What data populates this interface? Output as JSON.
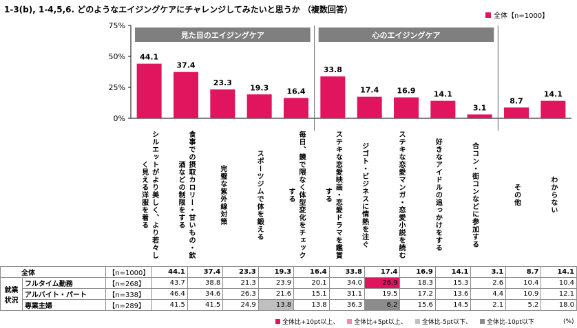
{
  "title": "1-3(b), 1-4,5,6. どのようなエイジングケアにチャレンジしてみたいと思うか （複数回答）",
  "legend_label": "全体【n=1000】",
  "unit": "(%)",
  "colors": {
    "bar": "#e1145e",
    "header": "#7f7f7f",
    "hi10": "#e1145e",
    "hi5": "#f08cb3",
    "lo5": "#bfbfbf",
    "lo10": "#8c8c8c"
  },
  "footnote": [
    {
      "label": "全体比+10pt以上、",
      "color": "#e1145e"
    },
    {
      "label": "全体比+5pt以上、",
      "color": "#f08cb3"
    },
    {
      "label": "全体比-5pt以下、",
      "color": "#bfbfbf"
    },
    {
      "label": "全体比-10pt以下",
      "color": "#8c8c8c"
    }
  ],
  "chart_data": {
    "type": "bar",
    "ylim": [
      0,
      75
    ],
    "yticks": [
      "0%",
      "25%",
      "50%",
      "75%"
    ],
    "groups": [
      {
        "label": "見た目のエイジングケア",
        "from": 0,
        "to": 4
      },
      {
        "label": "心のエイジングケア",
        "from": 5,
        "to": 9
      }
    ],
    "categories": [
      "シルエットがより美しく、より若々しく見える洋服を着る",
      "食事での摂取カロリー・甘いもの・飲酒などの制限をする",
      "完璧な紫外線対策",
      "スポーツジムで体を鍛える",
      "毎日、鏡で隈なく体型変化をチェックする",
      "ステキな恋愛映画・恋愛ドラマを鑑賞する",
      "ジゴト・ビジネスに情熱を注ぐ",
      "ステキな恋愛マンガ・恋愛小説を読む",
      "好きなアイドルの追っかけをする",
      "合コン・街コンなどに参加する",
      "その他",
      "わからない"
    ],
    "series": [
      {
        "name": "全体【n=1000】",
        "values": [
          44.1,
          37.4,
          23.3,
          19.3,
          16.4,
          33.8,
          17.4,
          16.9,
          14.1,
          3.1,
          8.7,
          14.1
        ]
      }
    ]
  },
  "table": {
    "group_label": "就業状況",
    "rows": [
      {
        "label": "全体",
        "n": "【n=1000】",
        "values": [
          "44.1",
          "37.4",
          "23.3",
          "19.3",
          "16.4",
          "33.8",
          "17.4",
          "16.9",
          "14.1",
          "3.1",
          "8.7",
          "14.1"
        ],
        "hl": []
      },
      {
        "label": "フルタイム勤務",
        "n": "【n=268】",
        "values": [
          "43.7",
          "38.8",
          "21.3",
          "23.9",
          "20.1",
          "34.0",
          "26.9",
          "18.3",
          "15.3",
          "2.6",
          "10.4",
          "10.4"
        ],
        "hl": [
          {
            "i": 6,
            "c": "hi10"
          }
        ]
      },
      {
        "label": "アルバイト・パート",
        "n": "【n=338】",
        "values": [
          "46.4",
          "34.6",
          "26.3",
          "21.6",
          "15.1",
          "31.1",
          "19.5",
          "17.2",
          "13.6",
          "4.4",
          "10.9",
          "12.1"
        ],
        "hl": []
      },
      {
        "label": "専業主婦",
        "n": "【n=289】",
        "values": [
          "41.5",
          "41.5",
          "24.9",
          "13.8",
          "13.8",
          "36.3",
          "6.2",
          "15.6",
          "14.5",
          "2.1",
          "5.2",
          "18.0"
        ],
        "hl": [
          {
            "i": 3,
            "c": "lo5"
          },
          {
            "i": 6,
            "c": "lo10"
          }
        ]
      }
    ]
  }
}
